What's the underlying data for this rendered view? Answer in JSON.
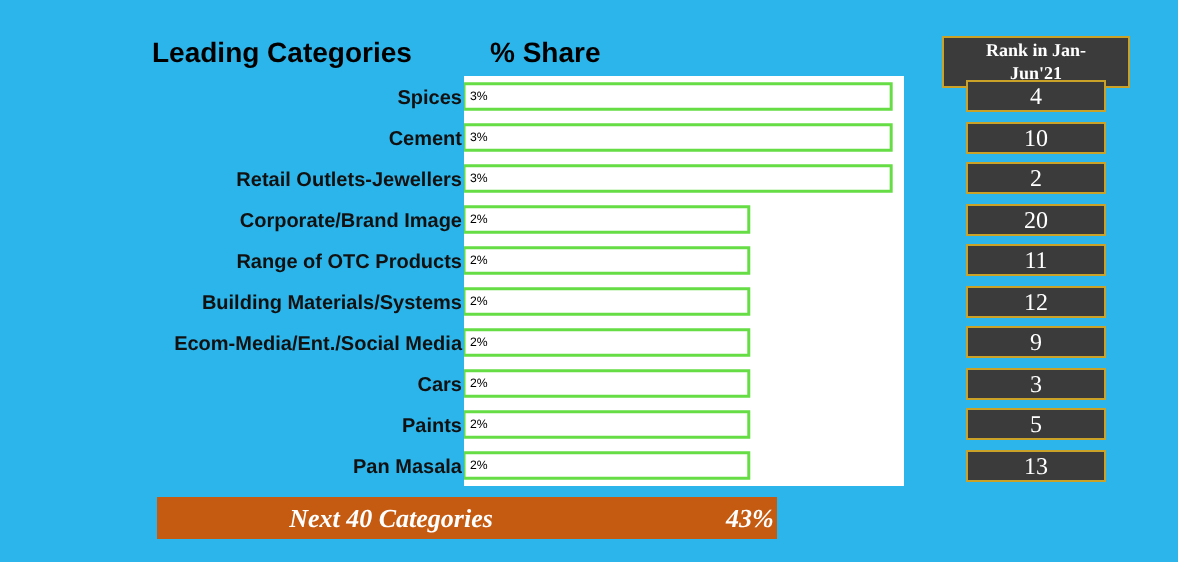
{
  "chart_data": {
    "type": "bar",
    "orientation": "horizontal",
    "title": "Leading Categories",
    "xlabel": "% Share",
    "categories": [
      "Spices",
      "Cement",
      "Retail Outlets-Jewellers",
      "Corporate/Brand Image",
      "Range of OTC Products",
      "Building Materials/Systems",
      "Ecom-Media/Ent./Social Media",
      "Cars",
      "Paints",
      "Pan Masala"
    ],
    "y2_categories": [
      "4",
      "10",
      "2",
      "20",
      "11",
      "12",
      "9",
      "3",
      "5",
      "13"
    ],
    "values": [
      3,
      3,
      3,
      2,
      2,
      2,
      2,
      2,
      2,
      2
    ],
    "value_labels": [
      "3%",
      "3%",
      "3%",
      "2%",
      "2%",
      "2%",
      "2%",
      "2%",
      "2%",
      "2%"
    ],
    "color": "#66dd44",
    "annotations": [
      "Rank in Jan-Jun'21",
      "Next 40 Categories",
      "43%"
    ]
  }
}
